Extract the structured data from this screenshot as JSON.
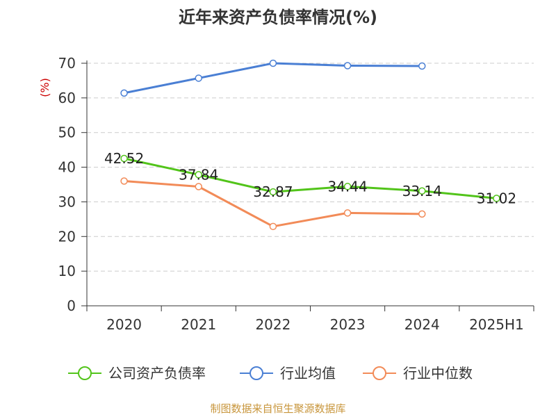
{
  "chart_data": {
    "type": "line",
    "title": "近年来资产负债率情况(%)",
    "y_unit": "(%)",
    "categories": [
      "2020",
      "2021",
      "2022",
      "2023",
      "2024",
      "2025H1"
    ],
    "ylim": [
      0,
      70
    ],
    "yticks": [
      0,
      10,
      20,
      30,
      40,
      50,
      60,
      70
    ],
    "grid": true,
    "legend_position": "bottom",
    "series": [
      {
        "name": "公司资产负债率",
        "color": "#52c41a",
        "values": [
          42.52,
          37.84,
          32.87,
          34.44,
          33.14,
          31.02
        ],
        "labels": [
          "42.52",
          "37.84",
          "32.87",
          "34.44",
          "33.14",
          "31.02"
        ]
      },
      {
        "name": "行业均值",
        "color": "#4a7fd4",
        "values": [
          61.4,
          65.7,
          70.0,
          69.3,
          69.2,
          null
        ]
      },
      {
        "name": "行业中位数",
        "color": "#f28b58",
        "values": [
          36.0,
          34.4,
          22.9,
          26.8,
          26.5,
          null
        ]
      }
    ],
    "source": "制图数据来自恒生聚源数据库",
    "colors": {
      "unit": "#cc0000",
      "source": "#c8963c",
      "axis": "#333333",
      "grid": "#cccccc"
    }
  }
}
